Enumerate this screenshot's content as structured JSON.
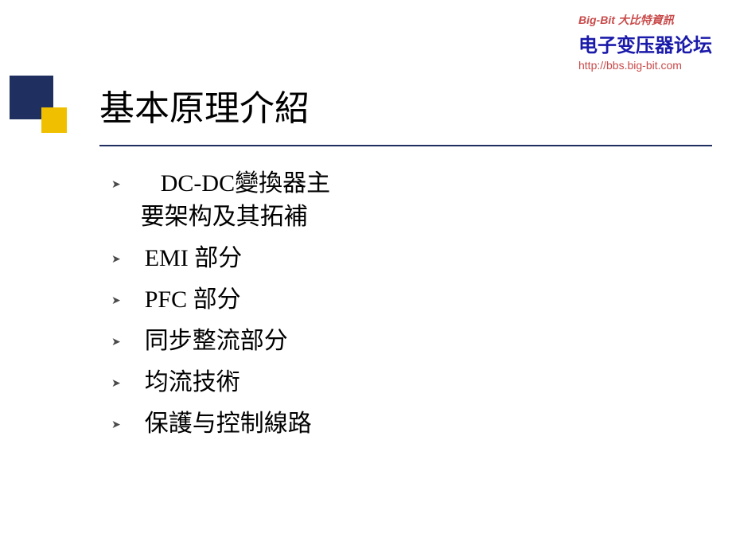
{
  "watermark": {
    "line1": "Big-Bit 大比特資訊",
    "line2": "电子变压器论坛",
    "line3": "http://bbs.big-bit.com"
  },
  "title": "基本原理介紹",
  "bullets": [
    {
      "text": "DC-DC變換器主要架构及其拓補",
      "multiline": true,
      "line1": "DC-DC變換器主",
      "line2": "要架构及其拓補"
    },
    {
      "text": "EMI 部分"
    },
    {
      "text": "PFC 部分"
    },
    {
      "text": "同步整流部分"
    },
    {
      "text": "均流技術"
    },
    {
      "text": "保護与控制線路"
    }
  ],
  "colors": {
    "navy": "#1f2f5f",
    "yellow": "#f0c000",
    "watermark_red": "#c94a4a",
    "watermark_blue": "#1a1aaa"
  }
}
